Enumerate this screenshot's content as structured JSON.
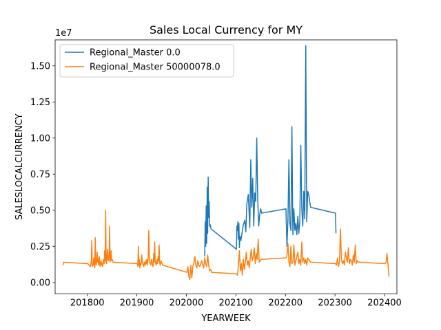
{
  "chart_data": {
    "type": "line",
    "title": "Sales Local Currency for MY",
    "xlabel": "YEARWEEK",
    "ylabel": "SALESLOCALCURRENCY",
    "y_offset_label": "1e7",
    "xlim": [
      201735,
      202425
    ],
    "ylim": [
      -800000,
      16800000
    ],
    "x_ticks": [
      201800,
      201900,
      202000,
      202100,
      202200,
      202300,
      202400
    ],
    "x_tick_labels": [
      "201800",
      "201900",
      "202000",
      "202100",
      "202200",
      "202300",
      "202400"
    ],
    "y_ticks": [
      0,
      2500000,
      5000000,
      7500000,
      10000000,
      12500000,
      15000000
    ],
    "y_tick_labels": [
      "0.00",
      "0.25",
      "0.50",
      "0.75",
      "1.00",
      "1.25",
      "1.50"
    ],
    "grid": false,
    "legend_position": "upper-left",
    "colors": {
      "series0": "#1f77b4",
      "series1": "#ff7f0e"
    },
    "series": [
      {
        "name": "Regional_Master 0.0",
        "color": "#1f77b4",
        "x": [
          202037,
          202038,
          202039,
          202040,
          202041,
          202042,
          202043,
          202044,
          202045,
          202046,
          202047,
          202048,
          202050,
          202101,
          202102,
          202103,
          202104,
          202105,
          202106,
          202107,
          202108,
          202110,
          202115,
          202118,
          202120,
          202122,
          202125,
          202128,
          202130,
          202132,
          202134,
          202136,
          202138,
          202140,
          202142,
          202144,
          202146,
          202148,
          202150,
          202152,
          202201,
          202203,
          202205,
          202207,
          202209,
          202211,
          202213,
          202215,
          202217,
          202219,
          202221,
          202223,
          202225,
          202227,
          202229,
          202231,
          202233,
          202235,
          202237,
          202239,
          202241,
          202243,
          202245,
          202247,
          202249,
          202251,
          202301,
          202302
        ],
        "y": [
          1800000,
          4200000,
          2500000,
          5300000,
          2700000,
          6600000,
          3400000,
          7300000,
          4500000,
          5600000,
          3900000,
          4000000,
          3700000,
          2300000,
          3900000,
          3600000,
          4200000,
          3000000,
          4100000,
          2400000,
          3200000,
          2900000,
          4000000,
          4300000,
          3500000,
          5400000,
          6100000,
          3800000,
          8500000,
          5200000,
          7200000,
          3900000,
          6200000,
          5600000,
          10000000,
          5800000,
          3900000,
          4700000,
          5100000,
          4800000,
          5100000,
          2500000,
          4300000,
          8500000,
          4100000,
          3600000,
          10800000,
          3300000,
          5100000,
          3600000,
          4100000,
          3300000,
          4600000,
          3400000,
          4200000,
          9500000,
          5100000,
          3900000,
          6300000,
          4400000,
          16400000,
          4200000,
          6300000,
          6100000,
          5600000,
          5200000,
          4800000,
          3400000
        ]
      },
      {
        "name": "Regional_Master 50000078.0",
        "color": "#ff7f0e",
        "x": [
          201751,
          201752,
          201801,
          201806,
          201807,
          201808,
          201809,
          201810,
          201811,
          201812,
          201813,
          201814,
          201815,
          201816,
          201817,
          201818,
          201819,
          201820,
          201821,
          201822,
          201823,
          201824,
          201825,
          201826,
          201827,
          201828,
          201829,
          201830,
          201831,
          201832,
          201833,
          201834,
          201835,
          201836,
          201837,
          201838,
          201839,
          201840,
          201841,
          201842,
          201843,
          201844,
          201845,
          201846,
          201847,
          201848,
          201849,
          201850,
          201851,
          201852,
          201901,
          201902,
          201903,
          201904,
          201905,
          201906,
          201907,
          201908,
          201909,
          201910,
          201911,
          201912,
          201913,
          201914,
          201915,
          201916,
          201917,
          201918,
          201919,
          201920,
          201921,
          201922,
          201923,
          201924,
          201925,
          201926,
          201927,
          201928,
          201929,
          201930,
          201931,
          201932,
          201933,
          201934,
          201935,
          201936,
          201937,
          201938,
          201939,
          201940,
          201941,
          201942,
          201943,
          201944,
          201945,
          201946,
          201947,
          201948,
          201949,
          201950,
          201951,
          201952,
          202001,
          202003,
          202005,
          202007,
          202009,
          202011,
          202013,
          202015,
          202017,
          202019,
          202021,
          202023,
          202025,
          202027,
          202029,
          202031,
          202033,
          202035,
          202037,
          202039,
          202041,
          202043,
          202045,
          202047,
          202049,
          202051,
          202101,
          202103,
          202105,
          202107,
          202109,
          202111,
          202113,
          202115,
          202117,
          202119,
          202121,
          202123,
          202125,
          202127,
          202129,
          202131,
          202133,
          202135,
          202137,
          202139,
          202141,
          202143,
          202145,
          202147,
          202149,
          202151,
          202201,
          202203,
          202205,
          202207,
          202209,
          202211,
          202213,
          202215,
          202217,
          202219,
          202221,
          202223,
          202225,
          202227,
          202229,
          202231,
          202233,
          202235,
          202237,
          202239,
          202241,
          202243,
          202245,
          202247,
          202249,
          202251,
          202301,
          202303,
          202305,
          202307,
          202309,
          202311,
          202313,
          202315,
          202317,
          202319,
          202321,
          202323,
          202325,
          202327,
          202329,
          202331,
          202333,
          202335,
          202337,
          202339,
          202341,
          202343,
          202345,
          202347,
          202349,
          202351,
          202401,
          202403,
          202405,
          202407,
          202409
        ],
        "y": [
          1200000,
          1400000,
          1300000,
          1100000,
          1200000,
          1500000,
          2900000,
          1100000,
          1300000,
          1200000,
          1700000,
          1300000,
          1000000,
          3100000,
          1300000,
          1200000,
          1500000,
          2100000,
          1400000,
          1600000,
          1200000,
          1800000,
          1300000,
          1100000,
          1400000,
          1500000,
          1200000,
          1300000,
          1100000,
          1400000,
          1600000,
          1300000,
          2200000,
          1500000,
          5000000,
          1400000,
          1300000,
          1900000,
          2300000,
          1600000,
          1500000,
          1800000,
          3900000,
          1400000,
          1700000,
          2200000,
          1500000,
          1600000,
          1500000,
          1400000,
          1300000,
          1100000,
          2500000,
          1200000,
          1600000,
          1000000,
          1300000,
          1200000,
          1400000,
          1900000,
          1500000,
          1300000,
          1200000,
          1100000,
          1400000,
          1300000,
          1200000,
          1500000,
          1300000,
          1600000,
          1200000,
          1400000,
          1700000,
          3600000,
          1900000,
          1400000,
          1300000,
          1200000,
          1500000,
          1600000,
          1300000,
          1100000,
          1200000,
          2000000,
          1400000,
          2800000,
          1500000,
          1300000,
          1200000,
          1400000,
          1600000,
          1300000,
          1800000,
          1500000,
          2600000,
          1400000,
          1200000,
          1300000,
          1500000,
          1400000,
          1300000,
          1200000,
          700000,
          1100000,
          400000,
          200000,
          1200000,
          300000,
          1100000,
          1300000,
          1800000,
          1200000,
          1000000,
          1500000,
          1200000,
          1100000,
          1300000,
          1500000,
          1200000,
          1000000,
          1700000,
          1300000,
          1100000,
          1900000,
          1200000,
          800000,
          900000,
          700000,
          600000,
          500000,
          1200000,
          2200000,
          800000,
          1300000,
          500000,
          1600000,
          900000,
          1400000,
          2100000,
          1200000,
          1500000,
          1000000,
          1700000,
          2300000,
          1500000,
          1800000,
          2400000,
          1300000,
          2000000,
          1600000,
          3000000,
          1400000,
          1500000,
          1600000,
          1700000,
          1800000,
          2700000,
          1400000,
          1100000,
          2500000,
          1300000,
          1400000,
          2600000,
          1200000,
          1500000,
          1800000,
          2100000,
          1300000,
          1600000,
          1200000,
          2800000,
          1400000,
          1700000,
          1300000,
          1600000,
          1200000,
          1700000,
          1600000,
          1500000,
          1400000,
          1300000,
          1200000,
          1700000,
          1100000,
          1400000,
          3700000,
          1600000,
          1300000,
          1500000,
          1200000,
          2100000,
          1700000,
          1400000,
          2400000,
          1300000,
          1600000,
          1500000,
          1200000,
          1900000,
          1400000,
          2600000,
          1300000,
          1500000,
          1400000,
          1400000,
          1400000,
          1300000,
          1400000,
          2000000,
          1200000,
          400000
        ]
      }
    ]
  }
}
